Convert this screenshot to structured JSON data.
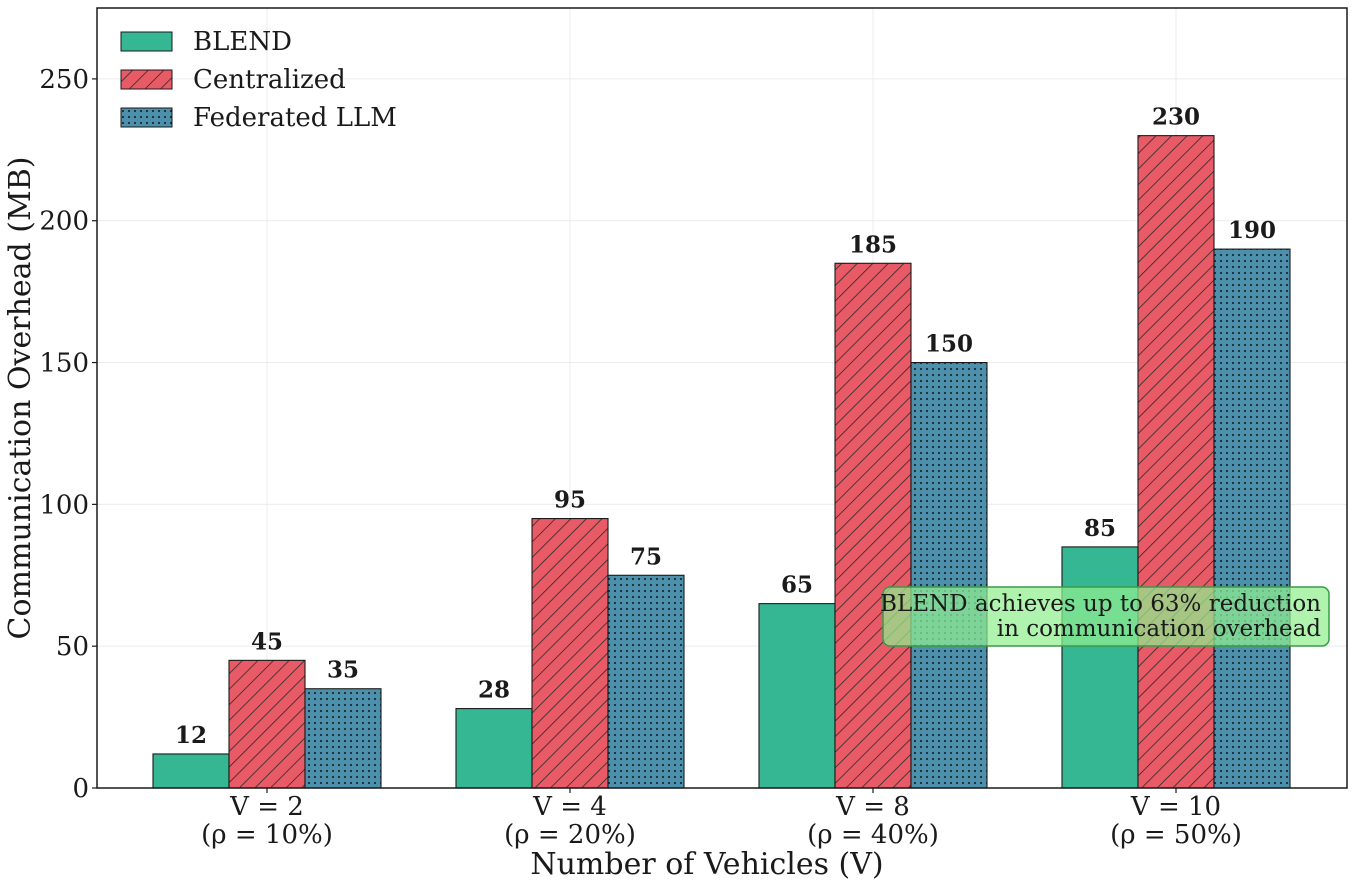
{
  "chart_data": {
    "type": "bar",
    "xlabel": "Number of Vehicles (V)",
    "ylabel": "Communication Overhead (MB)",
    "ylim": [
      0,
      275
    ],
    "yticks": [
      0,
      50,
      100,
      150,
      200,
      250
    ],
    "grid": true,
    "legend_position": "top-left",
    "categories": [
      {
        "line1": "V = 2",
        "line2": "(ρ = 10%)"
      },
      {
        "line1": "V = 4",
        "line2": "(ρ = 20%)"
      },
      {
        "line1": "V = 8",
        "line2": "(ρ = 40%)"
      },
      {
        "line1": "V = 10",
        "line2": "(ρ = 50%)"
      }
    ],
    "series": [
      {
        "name": "BLEND",
        "values": [
          12,
          28,
          65,
          85
        ],
        "color": "#35b794",
        "pattern": "solid"
      },
      {
        "name": "Centralized",
        "values": [
          45,
          95,
          185,
          230
        ],
        "color": "#e85a66",
        "pattern": "hatch"
      },
      {
        "name": "Federated LLM",
        "values": [
          35,
          75,
          150,
          190
        ],
        "color": "#4c90ac",
        "pattern": "dots"
      }
    ],
    "annotation": {
      "line1": "BLEND achieves up to 63% reduction",
      "line2": "in communication overhead",
      "color": "#90ee90"
    }
  }
}
